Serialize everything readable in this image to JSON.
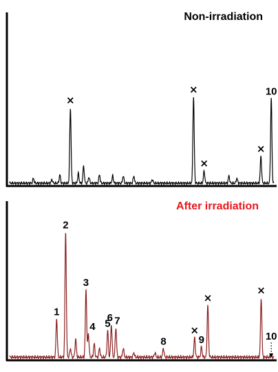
{
  "chart_data": [
    {
      "type": "line",
      "title": "Non-irradiation",
      "title_color": "#000000",
      "line_color": "#000000",
      "x_range": [
        0,
        100
      ],
      "y_range": [
        0,
        100
      ],
      "grid": false,
      "peaks": [
        {
          "x": 9,
          "h": 4
        },
        {
          "x": 16,
          "h": 3
        },
        {
          "x": 19,
          "h": 7
        },
        {
          "x": 23,
          "h": 62,
          "marker": "×"
        },
        {
          "x": 26,
          "h": 8
        },
        {
          "x": 28,
          "h": 14
        },
        {
          "x": 30,
          "h": 5
        },
        {
          "x": 34,
          "h": 7
        },
        {
          "x": 39,
          "h": 6
        },
        {
          "x": 43,
          "h": 6
        },
        {
          "x": 47,
          "h": 6
        },
        {
          "x": 54,
          "h": 3
        },
        {
          "x": 69.6,
          "h": 71,
          "marker": "×"
        },
        {
          "x": 73.6,
          "h": 10,
          "marker": "×"
        },
        {
          "x": 83,
          "h": 6
        },
        {
          "x": 86,
          "h": 4
        },
        {
          "x": 95.1,
          "h": 22,
          "marker": "×"
        },
        {
          "x": 99,
          "h": 70,
          "label": "10"
        }
      ]
    },
    {
      "type": "line",
      "title": "After irradiation",
      "title_color": "#e8161b",
      "line_color": "#8b1c1c",
      "x_range": [
        0,
        100
      ],
      "y_range": [
        0,
        100
      ],
      "grid": false,
      "peaks": [
        {
          "x": 17.8,
          "h": 26,
          "label": "1"
        },
        {
          "x": 21.2,
          "h": 85,
          "label": "2"
        },
        {
          "x": 23,
          "h": 6
        },
        {
          "x": 25,
          "h": 12
        },
        {
          "x": 28.9,
          "h": 46,
          "label": "3"
        },
        {
          "x": 29.8,
          "h": 16,
          "label": "4"
        },
        {
          "x": 32,
          "h": 9
        },
        {
          "x": 34,
          "h": 6
        },
        {
          "x": 37.1,
          "h": 18,
          "label": "5"
        },
        {
          "x": 38.5,
          "h": 22,
          "label": "6"
        },
        {
          "x": 40.2,
          "h": 20,
          "label": "7"
        },
        {
          "x": 43,
          "h": 6
        },
        {
          "x": 47,
          "h": 3
        },
        {
          "x": 55,
          "h": 3
        },
        {
          "x": 58.2,
          "h": 6,
          "label": "8"
        },
        {
          "x": 70,
          "h": 13,
          "marker": "×"
        },
        {
          "x": 72.6,
          "h": 7,
          "label": "9"
        },
        {
          "x": 75,
          "h": 35,
          "marker": "×"
        },
        {
          "x": 95.2,
          "h": 40,
          "marker": "×"
        },
        {
          "x": 99,
          "h": 1,
          "label": "10"
        }
      ]
    }
  ]
}
